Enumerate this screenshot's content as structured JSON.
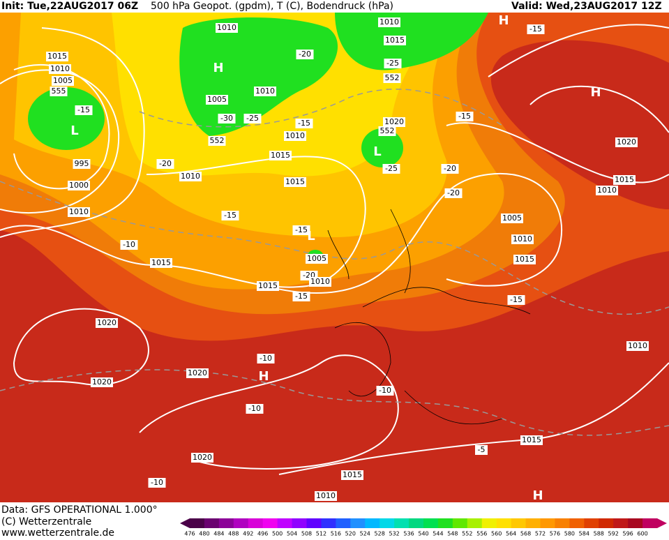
{
  "header": {
    "init": "Init: Tue,22AUG2017 06Z",
    "title": "500 hPa Geopot. (gpdm), T (C), Bodendruck (hPa)",
    "valid": "Valid: Wed,23AUG2017 12Z"
  },
  "footer": {
    "data": "Data: GFS OPERATIONAL 1.000°",
    "copyright": "(C) Wetterzentrale",
    "url": "www.wetterzentrale.de"
  },
  "colorbar": {
    "labels": [
      476,
      480,
      484,
      488,
      492,
      496,
      500,
      504,
      508,
      512,
      516,
      520,
      524,
      528,
      532,
      536,
      540,
      544,
      548,
      552,
      556,
      560,
      564,
      568,
      572,
      576,
      580,
      584,
      588,
      592,
      596,
      600
    ],
    "colors": [
      "#4a0048",
      "#6a0070",
      "#8c0098",
      "#b000c0",
      "#d800d8",
      "#f000f0",
      "#c000ff",
      "#9000ff",
      "#6000ff",
      "#3030ff",
      "#2060ff",
      "#2090ff",
      "#00b8ff",
      "#00d8e8",
      "#00e0b0",
      "#00d880",
      "#00e050",
      "#20e020",
      "#60e800",
      "#a8f000",
      "#f0f000",
      "#ffe000",
      "#ffc800",
      "#ffb000",
      "#ff9800",
      "#f88000",
      "#f06000",
      "#e04000",
      "#d02800",
      "#c01818",
      "#a80820",
      "#c00060"
    ]
  },
  "map_labels": [
    "1010",
    "1010",
    "1015",
    "-15",
    "1015",
    "1010",
    "1005",
    "555",
    "-15",
    "-20",
    "-25",
    "552",
    "1010",
    "1005",
    "-30",
    "-25",
    "-15",
    "1010",
    "552",
    "1020",
    "552",
    "-15",
    "1020",
    "-20",
    "995",
    "1000",
    "1015",
    "-25",
    "-20",
    "1010",
    "1015",
    "-20",
    "1015",
    "1010",
    "1010",
    "-15",
    "1005",
    "-15",
    "1010",
    "-10",
    "1005",
    "1015",
    "1015",
    "-20",
    "1010",
    "1015",
    "-15",
    "-15",
    "1020",
    "1010",
    "-10",
    "1020",
    "1020",
    "-10",
    "-10",
    "1015",
    "-5",
    "1020",
    "-10",
    "1015",
    "1010"
  ],
  "pressure_centers": [
    "H",
    "H",
    "H",
    "L",
    "L",
    "L",
    "H",
    "H"
  ]
}
